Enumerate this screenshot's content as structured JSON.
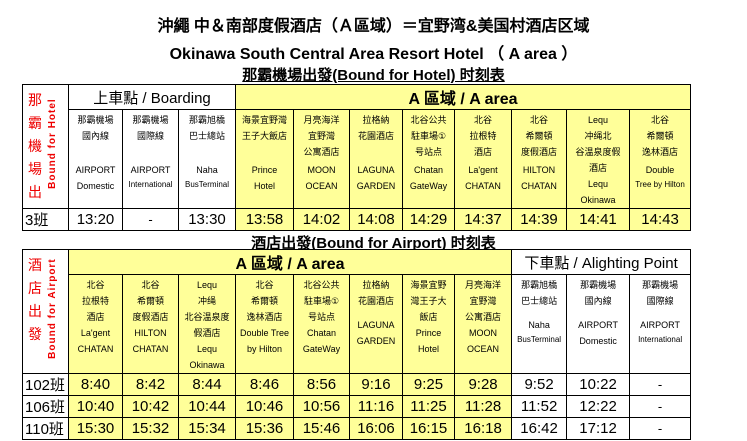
{
  "titles": {
    "cn": "沖繩 中＆南部度假酒店（Ａ區域）＝宜野湾&美国村酒店区域",
    "en": "Okinawa South Central Area Resort Hotel （ A area ）",
    "to_hotel": "那霸機場出發(Bound for Hotel) 时刻表",
    "to_airport": "酒店出發(Bound for Airport) 时刻表"
  },
  "colors": {
    "area_fill": "#ffff99",
    "side_label": "#e00000"
  },
  "to_hotel": {
    "side_cn": "那霸機場出發",
    "side_en": "Bound for Hotel",
    "boarding": "上車點 / Boarding",
    "area": "A 區域 / A area",
    "stops": [
      {
        "cn": "那霸機場 國內線",
        "en1": "AIRPORT",
        "en2": "Domestic"
      },
      {
        "cn": "那霸機場 國際線",
        "en1": "AIRPORT",
        "en2": "International"
      },
      {
        "cn": "那霸旭橋 巴士總站",
        "en1": "Naha",
        "en2": "BusTerminal"
      },
      {
        "cn": "海景宜野灣 王子大飯店",
        "en1": "Prince",
        "en2": "Hotel"
      },
      {
        "cn": "月亮海洋 宜野灣 公寓酒店",
        "en1": "MOON",
        "en2": "OCEAN"
      },
      {
        "cn": "拉格納 花園酒店",
        "en1": "LAGUNA",
        "en2": "GARDEN"
      },
      {
        "cn": "北谷公共 駐車場① 号站点",
        "en1": "Chatan",
        "en2": "GateWay"
      },
      {
        "cn": "北谷 拉根特 酒店",
        "en1": "La'gent",
        "en2": "CHATAN"
      },
      {
        "cn": "北谷 希爾頓 度假酒店",
        "en1": "HILTON",
        "en2": "CHATAN"
      },
      {
        "cn": "Lequ 冲绳北 谷温泉度假 酒店",
        "en1": "Lequ",
        "en2": "Okinawa"
      },
      {
        "cn": "北谷 希爾頓 逸林酒店",
        "en1": "Double",
        "en2": "Tree by Hilton"
      }
    ],
    "rows": [
      {
        "label": "3班",
        "times": [
          "13:20",
          "-",
          "13:30",
          "13:58",
          "14:02",
          "14:08",
          "14:29",
          "14:37",
          "14:39",
          "14:41",
          "14:43"
        ]
      }
    ]
  },
  "to_airport": {
    "side_cn": "酒店出發",
    "side_en": "Bound for Airport",
    "area": "A 區域 / A area",
    "alighting": "下車點 / Alighting Point",
    "stops": [
      {
        "cn": "北谷 拉根特 酒店",
        "en1": "La'gent",
        "en2": "CHATAN"
      },
      {
        "cn": "北谷 希爾頓 度假酒店",
        "en1": "HILTON",
        "en2": "CHATAN"
      },
      {
        "cn": "Lequ 冲绳 北谷温泉度 假酒店",
        "en1": "Lequ",
        "en2": "Okinawa"
      },
      {
        "cn": "北谷 希爾頓 逸林酒店",
        "en1": "Double Tree",
        "en2": "by Hilton"
      },
      {
        "cn": "北谷公共 駐車場① 号站点",
        "en1": "Chatan",
        "en2": "GateWay"
      },
      {
        "cn": "拉格納 花園酒店",
        "en1": "LAGUNA",
        "en2": "GARDEN"
      },
      {
        "cn": "海景宜野 灣王子大 飯店",
        "en1": "Prince",
        "en2": "Hotel"
      },
      {
        "cn": "月亮海洋 宜野灣 公寓酒店",
        "en1": "MOON",
        "en2": "OCEAN"
      },
      {
        "cn": "那霸旭橋 巴士總站",
        "en1": "Naha",
        "en2": "BusTerminal"
      },
      {
        "cn": "那霸機場 國內線",
        "en1": "AIRPORT",
        "en2": "Domestic"
      },
      {
        "cn": "那霸機場 國際線",
        "en1": "AIRPORT",
        "en2": "International"
      }
    ],
    "rows": [
      {
        "label": "102班",
        "times": [
          "8:40",
          "8:42",
          "8:44",
          "8:46",
          "8:56",
          "9:16",
          "9:25",
          "9:28",
          "9:52",
          "10:22",
          "-"
        ]
      },
      {
        "label": "106班",
        "times": [
          "10:40",
          "10:42",
          "10:44",
          "10:46",
          "10:56",
          "11:16",
          "11:25",
          "11:28",
          "11:52",
          "12:22",
          "-"
        ]
      },
      {
        "label": "110班",
        "times": [
          "15:30",
          "15:32",
          "15:34",
          "15:36",
          "15:46",
          "16:06",
          "16:15",
          "16:18",
          "16:42",
          "17:12",
          "-"
        ]
      }
    ]
  }
}
